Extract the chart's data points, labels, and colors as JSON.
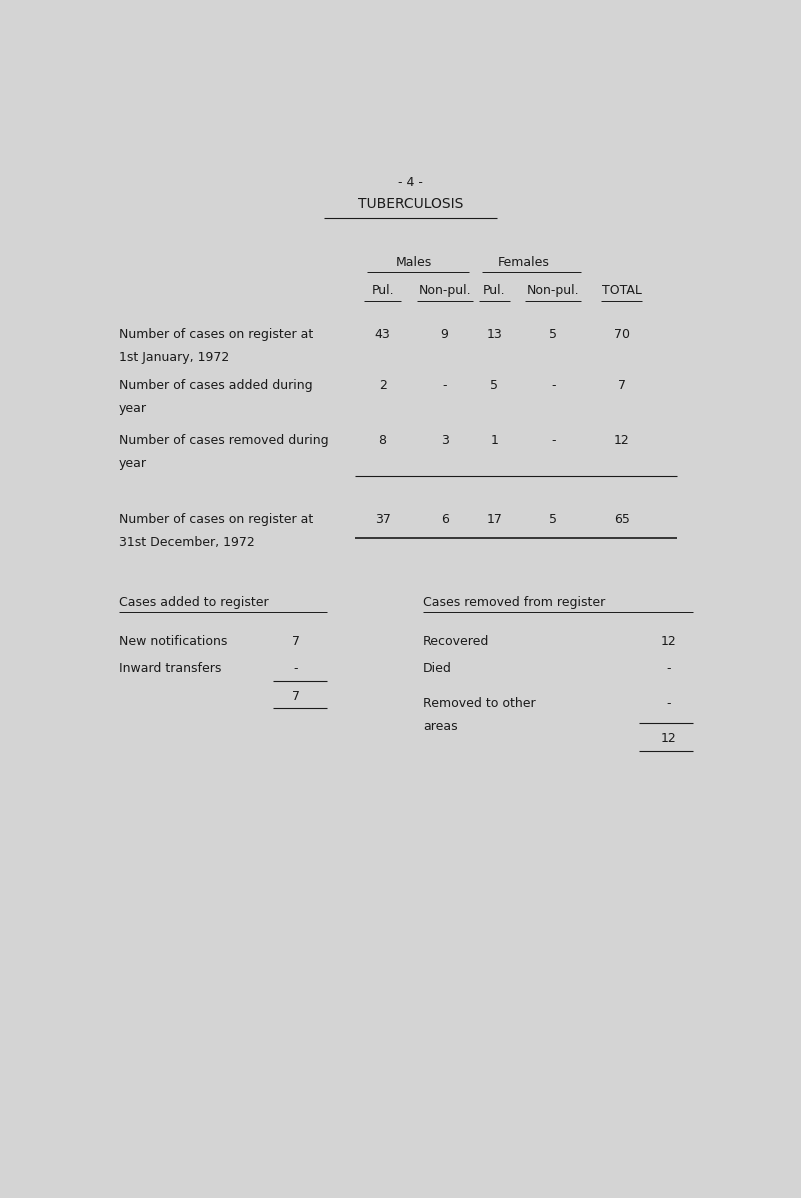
{
  "page_number": "- 4 -",
  "title": "TUBERCULOSIS",
  "bg_color": "#d4d4d4",
  "text_color": "#1a1a1a",
  "font_family": "Courier New",
  "header_males": "Males",
  "header_females": "Females",
  "col_headers": [
    "Pul.",
    "Non-pul.",
    "Pul.",
    "Non-pul.",
    "TOTAL"
  ],
  "rows": [
    {
      "label": [
        "Number of cases on register at",
        "1st January, 1972"
      ],
      "values": [
        "43",
        "9",
        "13",
        "5",
        "70"
      ]
    },
    {
      "label": [
        "Number of cases added during",
        "year"
      ],
      "values": [
        "2",
        "-",
        "5",
        "-",
        "7"
      ]
    },
    {
      "label": [
        "Number of cases removed during",
        "year"
      ],
      "values": [
        "8",
        "3",
        "1",
        "-",
        "12"
      ]
    },
    {
      "label": [
        "Number of cases on register at",
        "31st December, 1972"
      ],
      "values": [
        "37",
        "6",
        "17",
        "5",
        "65"
      ]
    }
  ],
  "left_section_title": "Cases added to register",
  "left_rows": [
    {
      "label": "New notifications",
      "value": "7"
    },
    {
      "label": "Inward transfers",
      "value": "-"
    }
  ],
  "left_total": "7",
  "right_section_title": "Cases removed from register",
  "right_rows": [
    {
      "label": "Recovered",
      "value": "12"
    },
    {
      "label": "Died",
      "value": "-"
    },
    {
      "label": [
        "Removed to other",
        "areas"
      ],
      "value": "-"
    }
  ],
  "right_total": "12"
}
